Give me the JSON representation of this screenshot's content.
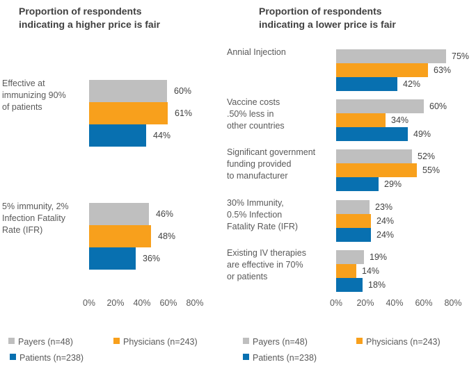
{
  "page": {
    "background": "#FFFFFF"
  },
  "colors": {
    "title": "#404040",
    "category_label": "#595959",
    "value_label": "#404040",
    "tick_label": "#595959",
    "payers_gray": "#BFBFBF",
    "physicians_orange": "#F8A01C",
    "patients_blue": "#0870B0"
  },
  "chart_data": [
    {
      "id": "left",
      "type": "bar",
      "orientation": "horizontal",
      "title": "Proportion of respondents\nindicating a higher price is fair",
      "grid": false,
      "legend_position": "bottom",
      "x_ticks": [
        "0%",
        "20%",
        "40%",
        "60%",
        "80%"
      ],
      "xlim": [
        0,
        80
      ],
      "value_suffix": "%",
      "series": [
        {
          "name": "Payers (n=48)",
          "color": "#BFBFBF"
        },
        {
          "name": "Physicians (n=243)",
          "color": "#F8A01C"
        },
        {
          "name": "Patients (n=238)",
          "color": "#0870B0"
        }
      ],
      "categories": [
        {
          "label": "Effective at\nimmunizing 90%\nof patients",
          "values": [
            60,
            61,
            44
          ]
        },
        {
          "label": "5% immunity, 2%\nInfection Fatality\nRate (IFR)",
          "values": [
            46,
            48,
            36
          ]
        }
      ]
    },
    {
      "id": "right",
      "type": "bar",
      "orientation": "horizontal",
      "title": "Proportion of respondents\nindicating a lower price is fair",
      "grid": false,
      "legend_position": "bottom",
      "x_ticks": [
        "0%",
        "20%",
        "40%",
        "60%",
        "80%"
      ],
      "xlim": [
        0,
        80
      ],
      "value_suffix": "%",
      "series": [
        {
          "name": "Payers (n=48)",
          "color": "#BFBFBF"
        },
        {
          "name": "Physicians (n=243)",
          "color": "#F8A01C"
        },
        {
          "name": "Patients (n=238)",
          "color": "#0870B0"
        }
      ],
      "categories": [
        {
          "label": "Annial Injection",
          "values": [
            75,
            63,
            42
          ]
        },
        {
          "label": "Vaccine costs\n.50% less in\nother countries",
          "values": [
            60,
            34,
            49
          ]
        },
        {
          "label": "Significant government\nfunding provided\nto manufacturer",
          "values": [
            52,
            55,
            29
          ]
        },
        {
          "label": "30% Immunity,\n0.5% Infection\nFatality Rate (IFR)",
          "values": [
            23,
            24,
            24
          ]
        },
        {
          "label": "Existing IV therapies\nare effective in 70%\nor patients",
          "values": [
            19,
            14,
            18
          ]
        }
      ]
    }
  ]
}
